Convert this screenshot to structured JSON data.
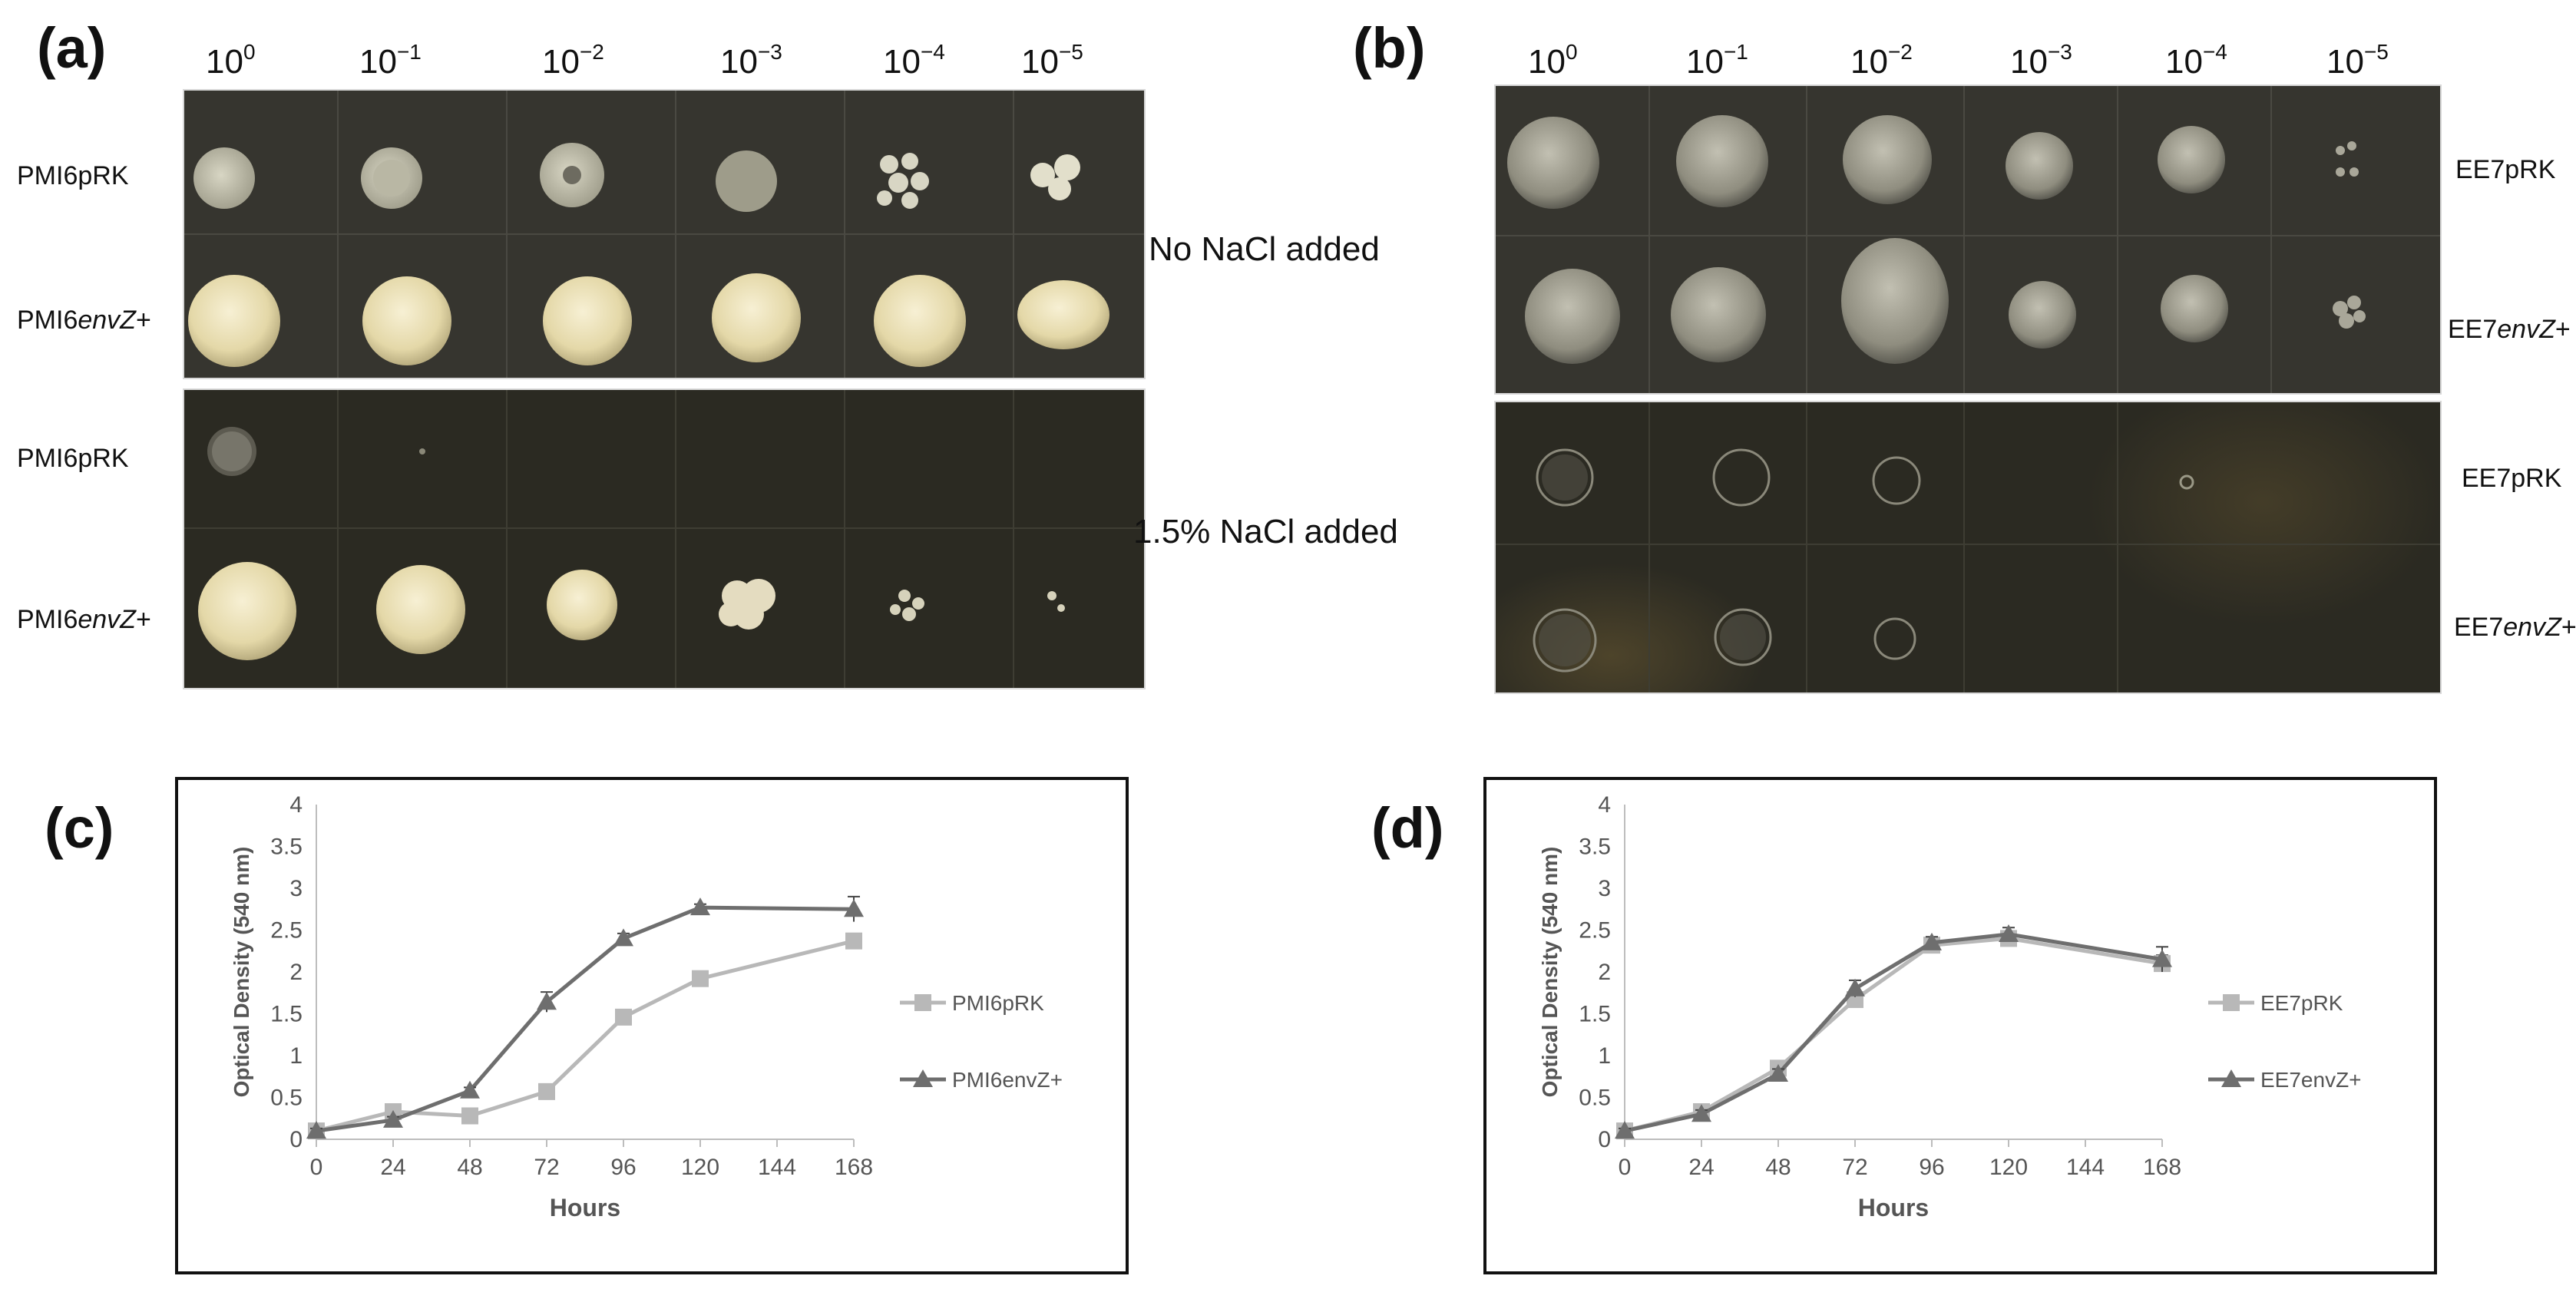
{
  "panels": {
    "a": {
      "label": "(a)",
      "dilutions": [
        {
          "base": "10",
          "exp": "0"
        },
        {
          "base": "10",
          "exp": "−1"
        },
        {
          "base": "10",
          "exp": "−2"
        },
        {
          "base": "10",
          "exp": "−3"
        },
        {
          "base": "10",
          "exp": "−4"
        },
        {
          "base": "10",
          "exp": "−5"
        }
      ],
      "rows": [
        {
          "prefix": "PMI6",
          "italic": "",
          "suffix": "pRK"
        },
        {
          "prefix": "PMI6",
          "italic": "envZ",
          "suffix": "+"
        },
        {
          "prefix": "PMI6",
          "italic": "",
          "suffix": "pRK"
        },
        {
          "prefix": "PMI6",
          "italic": "envZ",
          "suffix": "+"
        }
      ]
    },
    "b": {
      "label": "(b)",
      "dilutions": [
        {
          "base": "10",
          "exp": "0"
        },
        {
          "base": "10",
          "exp": "−1"
        },
        {
          "base": "10",
          "exp": "−2"
        },
        {
          "base": "10",
          "exp": "−3"
        },
        {
          "base": "10",
          "exp": "−4"
        },
        {
          "base": "10",
          "exp": "−5"
        }
      ],
      "rows": [
        {
          "prefix": "EE7",
          "italic": "",
          "suffix": "pRK"
        },
        {
          "prefix": "EE7",
          "italic": "envZ",
          "suffix": "+"
        },
        {
          "prefix": "EE7",
          "italic": "",
          "suffix": "pRK"
        },
        {
          "prefix": "EE7",
          "italic": "envZ",
          "suffix": "+"
        }
      ]
    },
    "c": {
      "label": "(c)"
    },
    "d": {
      "label": "(d)"
    }
  },
  "conditions": {
    "top": "No NaCl added",
    "bottom": "1.5% NaCl added"
  },
  "colors": {
    "plate_top": "#36352f",
    "plate_bottom": "#2b2a22",
    "colony_cream": "#eadfb6",
    "colony_pale": "#c9c7b4",
    "series_light": "#b8b8b8",
    "series_dark": "#6e6e6e"
  },
  "chart_data": [
    {
      "panel": "c",
      "type": "line",
      "xlabel": "Hours",
      "ylabel": "Optical Density (540 nm)",
      "x_ticks": [
        "0",
        "24",
        "48",
        "72",
        "96",
        "120",
        "144",
        "168"
      ],
      "y_ticks": [
        "0",
        "0.5",
        "1",
        "1.5",
        "2",
        "2.5",
        "3",
        "3.5",
        "4"
      ],
      "xlim": [
        0,
        168
      ],
      "ylim": [
        0,
        4
      ],
      "grid": false,
      "legend_position": "right",
      "series": [
        {
          "name": "PMI6pRK",
          "marker": "square",
          "color": "#b8b8b8",
          "x": [
            0,
            24,
            48,
            72,
            96,
            120,
            168
          ],
          "y": [
            0.1,
            0.33,
            0.28,
            0.57,
            1.46,
            1.92,
            2.37
          ],
          "err": [
            0.03,
            0.04,
            0.03,
            0.05,
            0.05,
            0.04,
            0.05
          ]
        },
        {
          "name": "PMI6envZ+",
          "marker": "triangle",
          "color": "#6e6e6e",
          "x": [
            0,
            24,
            48,
            72,
            96,
            120,
            168
          ],
          "y": [
            0.1,
            0.23,
            0.58,
            1.64,
            2.4,
            2.77,
            2.75
          ],
          "err": [
            0.03,
            0.04,
            0.04,
            0.12,
            0.06,
            0.04,
            0.15
          ]
        }
      ]
    },
    {
      "panel": "d",
      "type": "line",
      "xlabel": "Hours",
      "ylabel": "Optical Density (540 nm)",
      "x_ticks": [
        "0",
        "24",
        "48",
        "72",
        "96",
        "120",
        "144",
        "168"
      ],
      "y_ticks": [
        "0",
        "0.5",
        "1",
        "1.5",
        "2",
        "2.5",
        "3",
        "3.5",
        "4"
      ],
      "xlim": [
        0,
        168
      ],
      "ylim": [
        0,
        4
      ],
      "grid": false,
      "legend_position": "right",
      "series": [
        {
          "name": "EE7pRK",
          "marker": "square",
          "color": "#b8b8b8",
          "x": [
            0,
            24,
            48,
            72,
            96,
            120,
            168
          ],
          "y": [
            0.1,
            0.33,
            0.85,
            1.67,
            2.32,
            2.4,
            2.1
          ],
          "err": [
            0.03,
            0.05,
            0.06,
            0.08,
            0.07,
            0.08,
            0.1
          ]
        },
        {
          "name": "EE7envZ+",
          "marker": "triangle",
          "color": "#6e6e6e",
          "x": [
            0,
            24,
            48,
            72,
            96,
            120,
            168
          ],
          "y": [
            0.1,
            0.3,
            0.78,
            1.8,
            2.35,
            2.45,
            2.15
          ],
          "err": [
            0.03,
            0.05,
            0.06,
            0.1,
            0.07,
            0.08,
            0.15
          ]
        }
      ]
    }
  ]
}
